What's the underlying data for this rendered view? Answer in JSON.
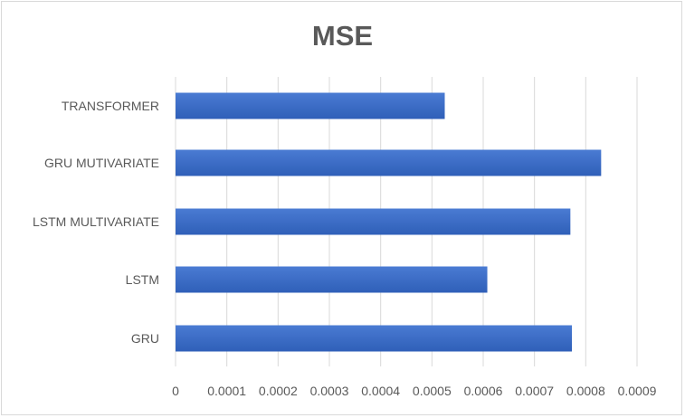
{
  "chart_data": {
    "type": "bar",
    "orientation": "horizontal",
    "title": "MSE",
    "categories": [
      "TRANSFORMER",
      "GRU MUTIVARIATE",
      "LSTM MULTIVARIATE",
      "LSTM",
      "GRU"
    ],
    "values": [
      0.000525,
      0.00083,
      0.00077,
      0.000608,
      0.000773
    ],
    "xlim": [
      0,
      0.0009
    ],
    "x_ticks": [
      "0",
      "0.0001",
      "0.0002",
      "0.0003",
      "0.0004",
      "0.0005",
      "0.0006",
      "0.0007",
      "0.0008",
      "0.0009"
    ],
    "x_tick_values": [
      0,
      0.0001,
      0.0002,
      0.0003,
      0.0004,
      0.0005,
      0.0006,
      0.0007,
      0.0008,
      0.0009
    ],
    "grid": true,
    "legend": "none",
    "colors": {
      "bar_top": "#4a7bd3",
      "bar_bottom": "#2f5fb8",
      "grid": "#d9d9d9",
      "text": "#595959"
    }
  }
}
